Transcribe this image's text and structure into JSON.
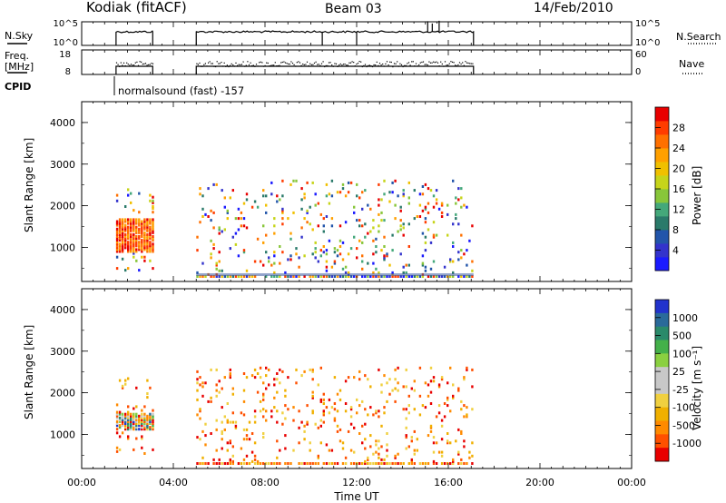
{
  "header": {
    "station": "Kodiak (fitACF)",
    "beam": "Beam 03",
    "date": "14/Feb/2010"
  },
  "top_panels": {
    "nsky_label": "N.Sky",
    "nsky_ticks": [
      "10^5",
      "10^0"
    ],
    "nsearch_label": "N.Search",
    "nsearch_ticks": [
      "10^5",
      "10^0"
    ],
    "freq_label_1": "Freq.",
    "freq_label_2": "[MHz]",
    "freq_ticks": [
      "18",
      "8"
    ],
    "nave_label": "Nave",
    "nave_ticks": [
      "60",
      "0"
    ],
    "cpid_label": "CPID",
    "cpid_text": "normalsound (fast) -157"
  },
  "colorbars": {
    "power": {
      "label": "Power [dB]",
      "ticks": [
        "28",
        "24",
        "20",
        "16",
        "12",
        "8",
        "4"
      ],
      "colors_bottom_to_top": [
        "#1a1aff",
        "#3333cc",
        "#2255aa",
        "#2a7a6a",
        "#44a87a",
        "#88c63a",
        "#c6d41a",
        "#f0c000",
        "#ffa000",
        "#ff7000",
        "#ff3c00",
        "#e80000"
      ]
    },
    "velocity": {
      "label": "Velocity [m s⁻¹]",
      "ticks": [
        "1000",
        "500",
        "100",
        "25",
        "-25",
        "-100",
        "-500",
        "-1000"
      ],
      "colors_top_to_bottom": [
        "#2233cc",
        "#2a6a9a",
        "#2a8a6a",
        "#44b04a",
        "#8ad040",
        "#c8c8c8",
        "#c8c8c8",
        "#f0d040",
        "#f0b000",
        "#ff8a00",
        "#ff5000",
        "#e80000"
      ]
    }
  },
  "axes": {
    "x_label": "Time UT",
    "x_ticks": [
      "00:00",
      "04:00",
      "08:00",
      "12:00",
      "16:00",
      "20:00",
      "00:00"
    ],
    "y_label": "Slant Range [km]",
    "y_ticks": [
      "1000",
      "2000",
      "3000",
      "4000"
    ]
  },
  "chart_data": [
    {
      "type": "line",
      "name": "N.Sky / N.Search",
      "segments_hours": [
        [
          1.5,
          3.1
        ],
        [
          5.0,
          17.1
        ]
      ],
      "level": "high (~10^3)",
      "vertical_markers_hours": [
        10.5,
        12.0
      ],
      "ylim_label": [
        "10^0",
        "10^5"
      ]
    },
    {
      "type": "scatter",
      "name": "Freq / Nave",
      "segments_hours": [
        [
          1.5,
          3.1
        ],
        [
          5.0,
          17.1
        ]
      ],
      "freq_ylim_mhz": [
        8,
        18
      ],
      "nave_ylim": [
        0,
        60
      ]
    },
    {
      "type": "heatmap",
      "name": "Power",
      "x_range_hours": [
        0,
        24
      ],
      "y_range_km": [
        180,
        4500
      ],
      "echo_blocks": [
        {
          "t_start": 1.5,
          "t_end": 3.1,
          "r_start": 450,
          "r_end": 2400,
          "dense_band_km": [
            900,
            1700
          ]
        },
        {
          "t_start": 5.0,
          "t_end": 17.1,
          "r_start": 300,
          "r_end": 2600,
          "dense_band_km": [
            280,
            330
          ]
        }
      ]
    },
    {
      "type": "heatmap",
      "name": "Velocity",
      "x_range_hours": [
        0,
        24
      ],
      "y_range_km": [
        180,
        4500
      ],
      "echo_blocks": [
        {
          "t_start": 1.5,
          "t_end": 3.1,
          "r_start": 450,
          "r_end": 2400,
          "dense_band_km": [
            1100,
            1500
          ]
        },
        {
          "t_start": 5.0,
          "t_end": 17.1,
          "r_start": 300,
          "r_end": 2600,
          "dense_band_km": [
            280,
            330
          ]
        }
      ]
    }
  ]
}
